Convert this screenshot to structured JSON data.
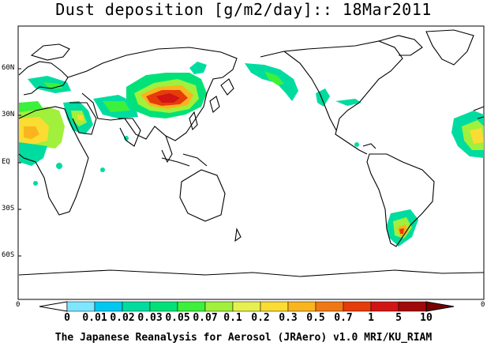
{
  "title": "Dust deposition [g/m2/day]:: 18Mar2011",
  "lat_labels": [
    "60N",
    "30N",
    "EQ",
    "30S",
    "60S"
  ],
  "axis_end_left": "0",
  "axis_end_right": "0",
  "colorbar": {
    "labels": [
      "0",
      "0.01",
      "0.02",
      "0.03",
      "0.05",
      "0.07",
      "0.1",
      "0.2",
      "0.3",
      "0.5",
      "0.7",
      "1",
      "5",
      "10"
    ],
    "colors": [
      "#ffffff",
      "#7fe6ff",
      "#00c8f0",
      "#00dca0",
      "#00e278",
      "#3cf03c",
      "#a0f03c",
      "#e6f050",
      "#fadc32",
      "#fab41e",
      "#f07814",
      "#e63c0a",
      "#d21414",
      "#a00a0a",
      "#780000"
    ]
  },
  "footer": "The Japanese Reanalysis for Aerosol (JRAero) v1.0 MRI/KU_RIAM"
}
